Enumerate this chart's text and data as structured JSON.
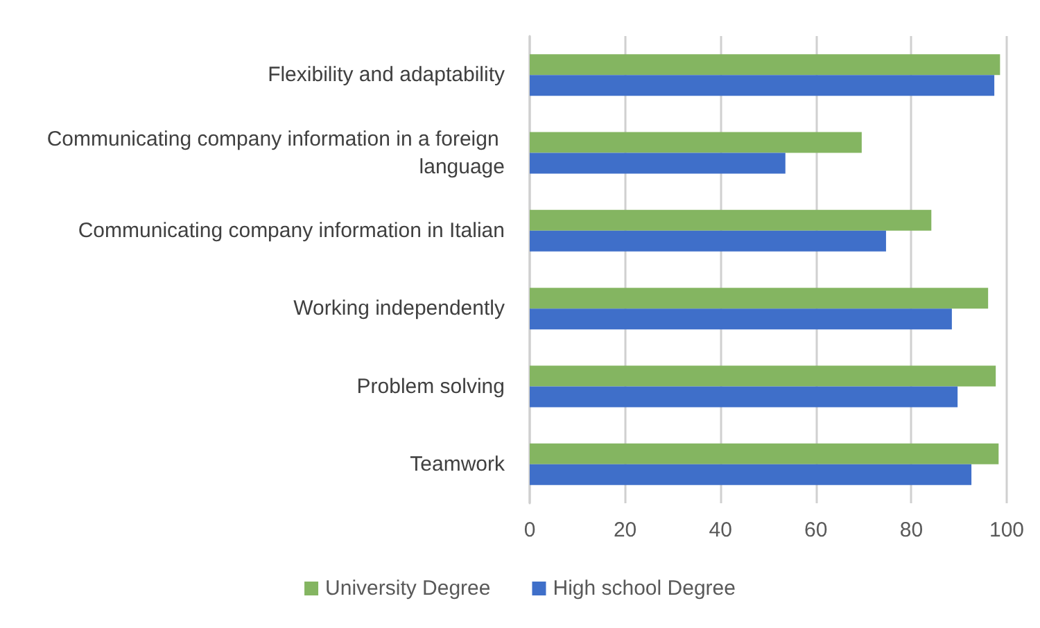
{
  "chart_data": {
    "type": "bar",
    "orientation": "horizontal",
    "categories": [
      "Flexibility and adaptability",
      "Communicating company information in a foreign language",
      "Communicating company information in Italian",
      "Working independently",
      "Problem solving",
      "Teamwork"
    ],
    "series": [
      {
        "name": "University Degree",
        "color": "#84b561",
        "values": [
          98.6,
          69.6,
          84.2,
          96.1,
          97.7,
          98.3
        ]
      },
      {
        "name": "High school Degree",
        "color": "#3f6fc9",
        "values": [
          97.4,
          53.6,
          74.7,
          88.5,
          89.7,
          92.6
        ]
      }
    ],
    "xlim": [
      0,
      100
    ],
    "xticks": [
      0,
      20,
      40,
      60,
      80,
      100
    ],
    "grid": "x",
    "legend": "bottom"
  }
}
